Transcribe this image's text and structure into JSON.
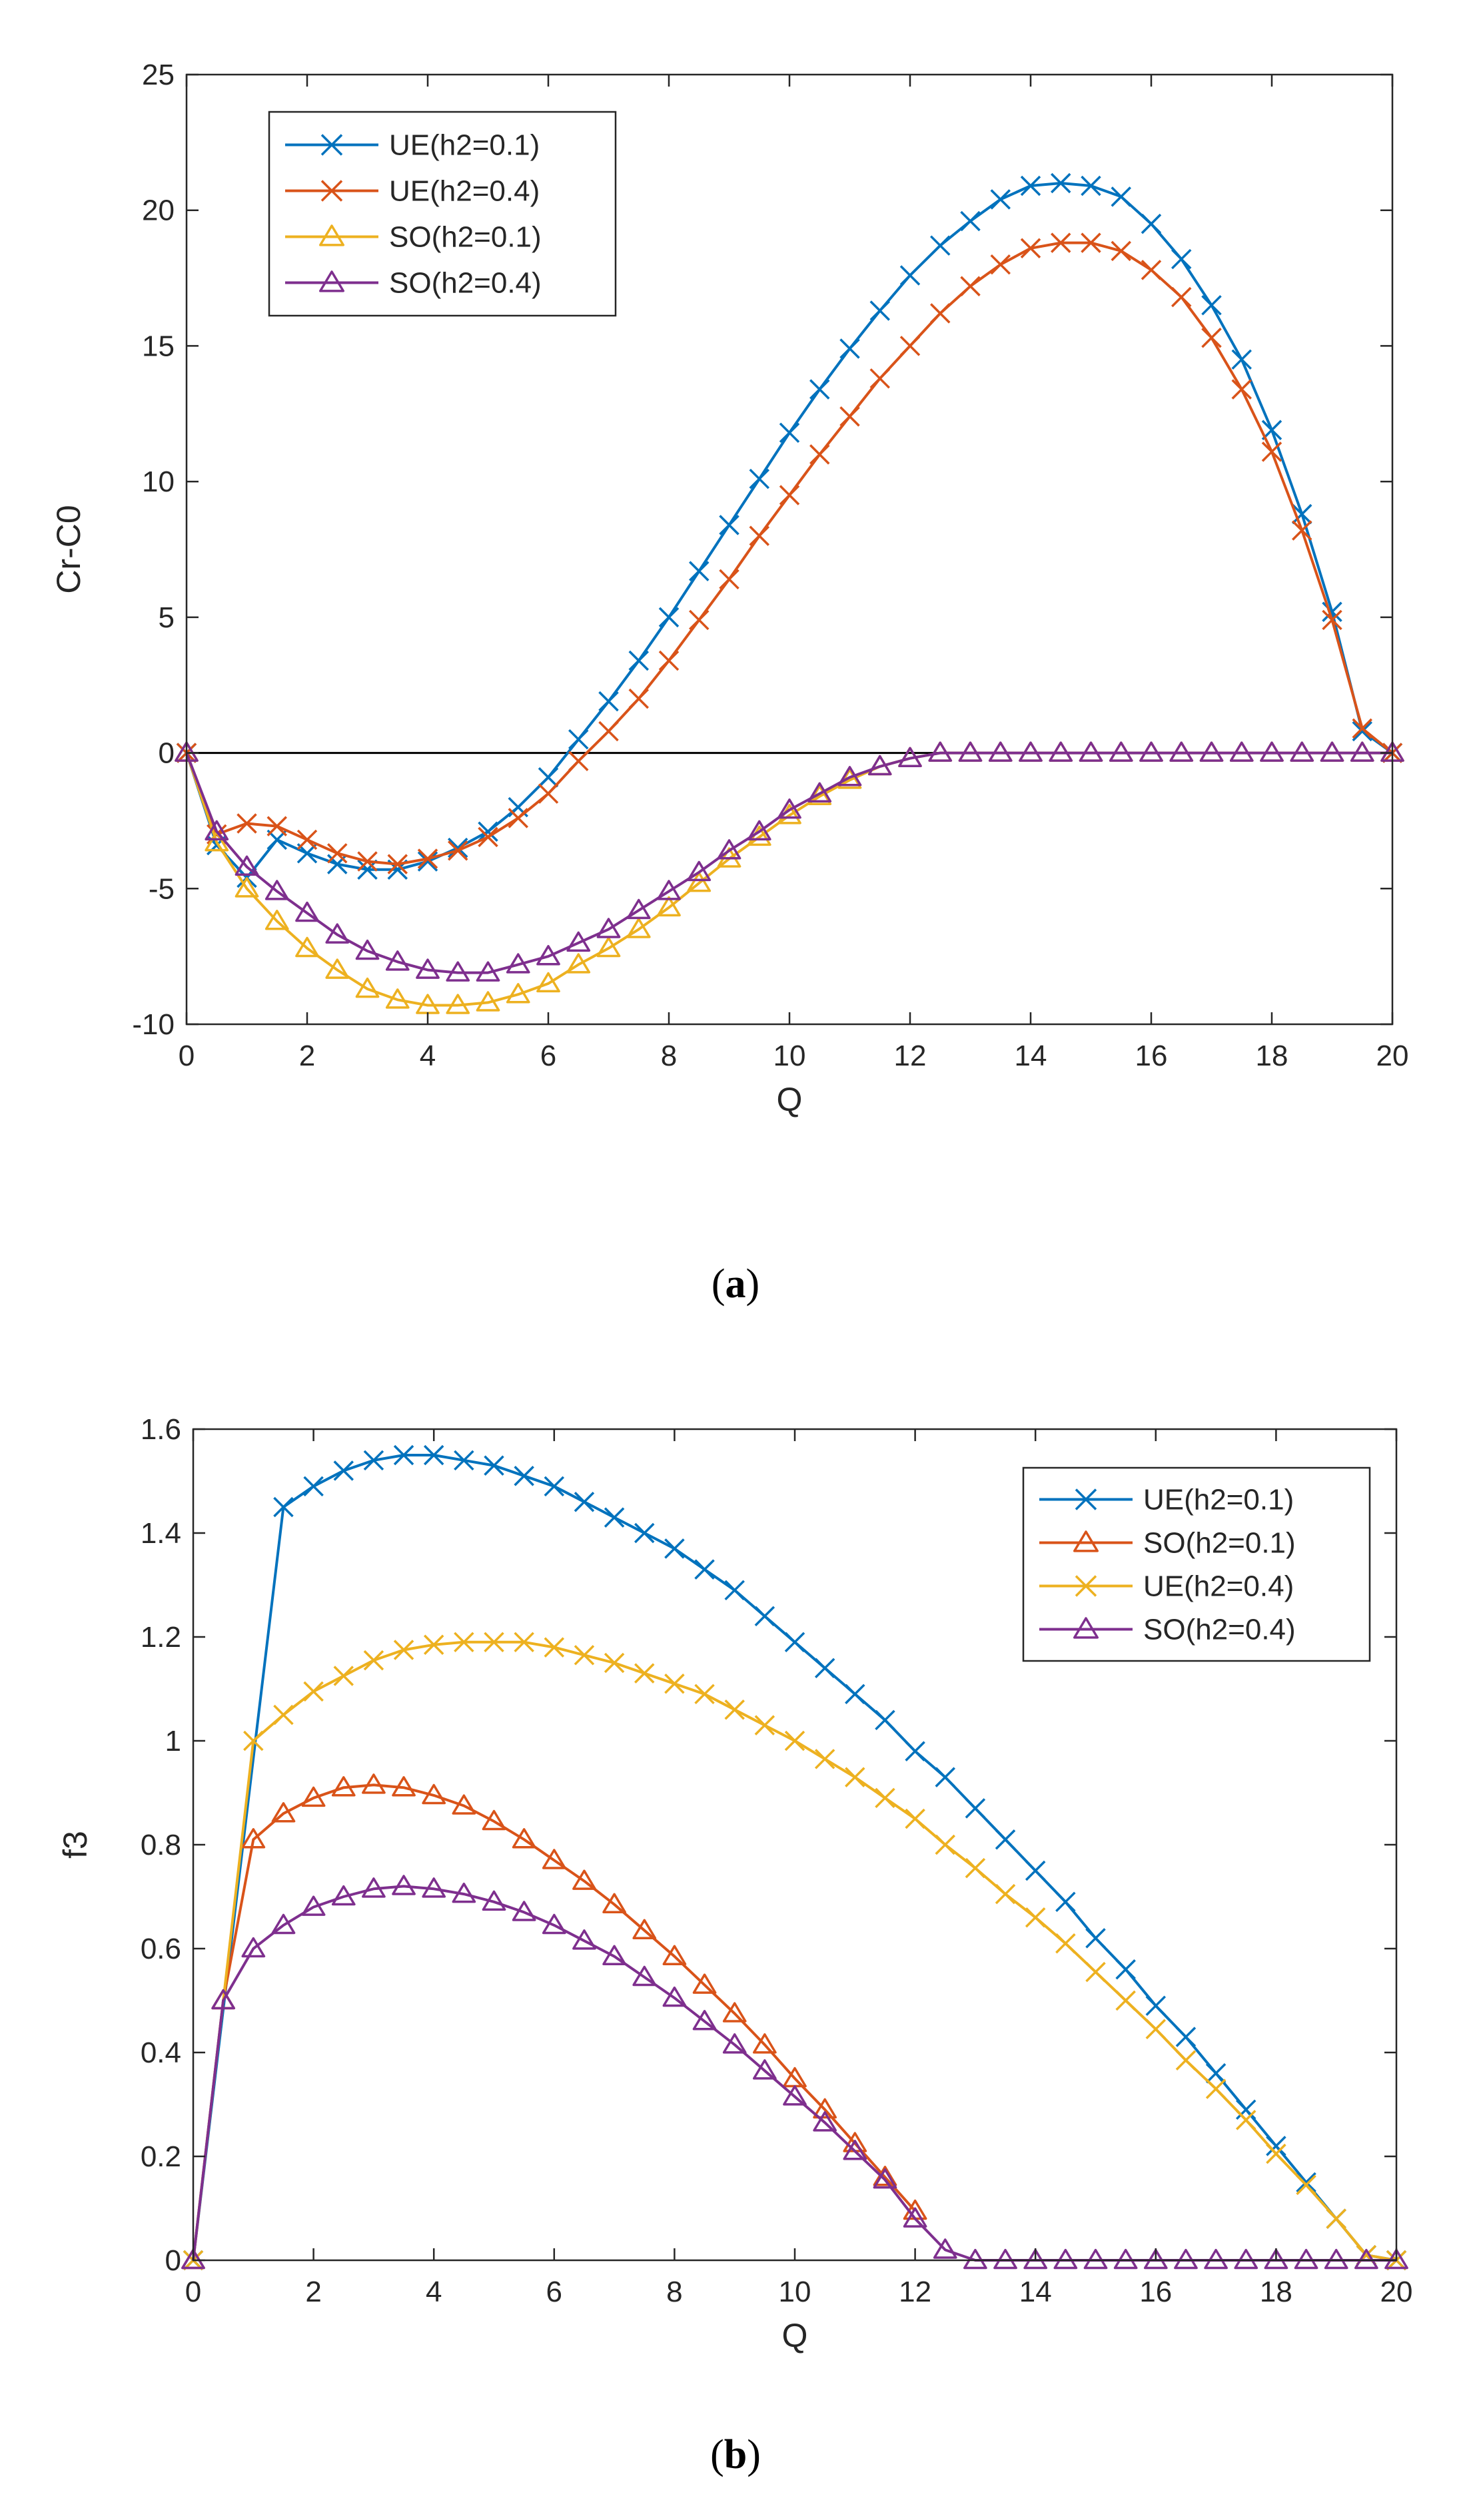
{
  "captions": {
    "a": "(a)",
    "b": "(b)"
  },
  "caption_parts": {
    "a": {
      "open": "(",
      "letter": "a",
      "close": ")"
    },
    "b": {
      "open": "(",
      "letter": "b",
      "close": ")"
    }
  },
  "chart_data": [
    {
      "id": "a",
      "type": "line",
      "title": "",
      "xlabel": "Q",
      "ylabel": "Cr-C0",
      "xlim": [
        0,
        20
      ],
      "ylim": [
        -10,
        25
      ],
      "xticks": [
        0,
        2,
        4,
        6,
        8,
        10,
        12,
        14,
        16,
        18,
        20
      ],
      "yticks": [
        -10,
        -5,
        0,
        5,
        10,
        15,
        20,
        25
      ],
      "grid": false,
      "legend_position": "top-left",
      "reference_line": {
        "y": 0,
        "color": "#000000"
      },
      "series": [
        {
          "name": "UE(h2=0.1)",
          "color": "#0072BD",
          "marker": "x",
          "x": [
            0,
            0.5,
            1,
            1.5,
            2,
            2.5,
            3,
            3.5,
            4,
            4.5,
            5,
            5.5,
            6,
            6.5,
            7,
            7.5,
            8,
            8.5,
            9,
            9.5,
            10,
            10.5,
            11,
            11.5,
            12,
            12.5,
            13,
            13.5,
            14,
            14.5,
            15,
            15.5,
            16,
            16.5,
            17,
            17.5,
            18,
            18.5,
            19,
            19.5,
            20
          ],
          "y": [
            0,
            -3.4,
            -4.6,
            -3.2,
            -3.7,
            -4.1,
            -4.3,
            -4.3,
            -4.0,
            -3.5,
            -2.9,
            -2.0,
            -0.9,
            0.5,
            1.9,
            3.4,
            5.0,
            6.7,
            8.4,
            10.1,
            11.8,
            13.4,
            14.9,
            16.3,
            17.6,
            18.7,
            19.6,
            20.4,
            20.9,
            21.0,
            20.9,
            20.5,
            19.5,
            18.2,
            16.5,
            14.5,
            11.9,
            8.8,
            5.2,
            0.8,
            0
          ],
          "marker_every": 1
        },
        {
          "name": "UE(h2=0.4)",
          "color": "#D95319",
          "marker": "x",
          "x": [
            0,
            0.5,
            1,
            1.5,
            2,
            2.5,
            3,
            3.5,
            4,
            4.5,
            5,
            5.5,
            6,
            6.5,
            7,
            7.5,
            8,
            8.5,
            9,
            9.5,
            10,
            10.5,
            11,
            11.5,
            12,
            12.5,
            13,
            13.5,
            14,
            14.5,
            15,
            15.5,
            16,
            16.5,
            17,
            17.5,
            18,
            18.5,
            19,
            19.5,
            20
          ],
          "y": [
            0,
            -3.0,
            -2.6,
            -2.7,
            -3.2,
            -3.7,
            -4.0,
            -4.1,
            -3.9,
            -3.6,
            -3.1,
            -2.4,
            -1.5,
            -0.3,
            0.8,
            2.0,
            3.4,
            4.9,
            6.4,
            8.0,
            9.5,
            11.0,
            12.4,
            13.8,
            15.0,
            16.2,
            17.2,
            18.0,
            18.6,
            18.8,
            18.8,
            18.5,
            17.8,
            16.8,
            15.3,
            13.4,
            11.1,
            8.2,
            4.9,
            0.9,
            0
          ],
          "marker_every": 1
        },
        {
          "name": "SO(h2=0.1)",
          "color": "#EDB120",
          "marker": "triangle",
          "x": [
            0,
            0.5,
            1,
            1.5,
            2,
            2.5,
            3,
            3.5,
            4,
            4.5,
            5,
            5.5,
            6,
            6.5,
            7,
            7.5,
            8,
            8.5,
            9,
            9.5,
            10,
            10.5,
            11,
            11.5,
            12,
            12.5,
            13,
            13.5,
            14,
            14.5,
            15,
            15.5,
            16,
            16.5,
            17,
            17.5,
            18,
            18.5,
            19,
            19.5,
            20
          ],
          "y": [
            0,
            -3.3,
            -5.0,
            -6.2,
            -7.2,
            -8.0,
            -8.7,
            -9.1,
            -9.3,
            -9.3,
            -9.2,
            -8.9,
            -8.5,
            -7.8,
            -7.2,
            -6.5,
            -5.7,
            -4.8,
            -3.9,
            -3.1,
            -2.3,
            -1.6,
            -1.0,
            -0.5,
            -0.2,
            0,
            0,
            0,
            0,
            0,
            0,
            0,
            0,
            0,
            0,
            0,
            0,
            0,
            0,
            0,
            0
          ],
          "marker_every": 1
        },
        {
          "name": "SO(h2=0.4)",
          "color": "#7E2F8E",
          "marker": "triangle",
          "x": [
            0,
            0.5,
            1,
            1.5,
            2,
            2.5,
            3,
            3.5,
            4,
            4.5,
            5,
            5.5,
            6,
            6.5,
            7,
            7.5,
            8,
            8.5,
            9,
            9.5,
            10,
            10.5,
            11,
            11.5,
            12,
            12.5,
            13,
            13.5,
            14,
            14.5,
            15,
            15.5,
            16,
            16.5,
            17,
            17.5,
            18,
            18.5,
            19,
            19.5,
            20
          ],
          "y": [
            0,
            -2.9,
            -4.2,
            -5.1,
            -5.9,
            -6.7,
            -7.3,
            -7.7,
            -8.0,
            -8.1,
            -8.1,
            -7.8,
            -7.5,
            -7.0,
            -6.5,
            -5.8,
            -5.1,
            -4.4,
            -3.6,
            -2.9,
            -2.1,
            -1.5,
            -0.9,
            -0.5,
            -0.2,
            0,
            0,
            0,
            0,
            0,
            0,
            0,
            0,
            0,
            0,
            0,
            0,
            0,
            0,
            0,
            0
          ],
          "marker_every": 1
        }
      ]
    },
    {
      "id": "b",
      "type": "line",
      "title": "",
      "xlabel": "Q",
      "ylabel": "f3",
      "xlim": [
        0,
        20
      ],
      "ylim": [
        0,
        1.6
      ],
      "xticks": [
        0,
        2,
        4,
        6,
        8,
        10,
        12,
        14,
        16,
        18,
        20
      ],
      "yticks": [
        0,
        0.2,
        0.4,
        0.6,
        0.8,
        1,
        1.2,
        1.4,
        1.6
      ],
      "grid": false,
      "legend_position": "top-right",
      "series": [
        {
          "name": "UE(h2=0.1)",
          "color": "#0072BD",
          "marker": "x",
          "x": [
            0,
            1.5,
            2,
            2.5,
            3,
            3.5,
            4,
            4.5,
            5,
            5.5,
            6,
            6.5,
            7,
            7.5,
            8,
            8.5,
            9,
            9.5,
            10,
            10.5,
            11,
            11.5,
            12,
            12.5,
            13,
            13.5,
            14,
            14.5,
            15,
            15.5,
            16,
            16.5,
            17,
            17.5,
            18,
            18.5,
            19,
            19.5,
            20
          ],
          "y": [
            0,
            1.45,
            1.49,
            1.52,
            1.54,
            1.55,
            1.55,
            1.54,
            1.53,
            1.51,
            1.49,
            1.46,
            1.43,
            1.4,
            1.37,
            1.33,
            1.29,
            1.24,
            1.19,
            1.14,
            1.09,
            1.04,
            0.98,
            0.93,
            0.87,
            0.81,
            0.75,
            0.69,
            0.62,
            0.56,
            0.49,
            0.43,
            0.36,
            0.29,
            0.22,
            0.15,
            0.08,
            0.01,
            0
          ],
          "marker_every": 1
        },
        {
          "name": "SO(h2=0.1)",
          "color": "#D95319",
          "marker": "triangle",
          "x": [
            0,
            0.5,
            1,
            1.5,
            2,
            2.5,
            3,
            3.5,
            4,
            4.5,
            5,
            5.5,
            6,
            6.5,
            7,
            7.5,
            8,
            8.5,
            9,
            9.5,
            10,
            10.5,
            11,
            11.5,
            12
          ],
          "y": [
            0,
            0.5,
            0.81,
            0.86,
            0.89,
            0.91,
            0.915,
            0.91,
            0.895,
            0.875,
            0.845,
            0.81,
            0.77,
            0.73,
            0.685,
            0.635,
            0.585,
            0.53,
            0.475,
            0.415,
            0.35,
            0.29,
            0.225,
            0.16,
            0.095
          ],
          "marker_every": 1
        },
        {
          "name": "UE(h2=0.4)",
          "color": "#EDB120",
          "marker": "x",
          "x": [
            0,
            1,
            1.5,
            2,
            2.5,
            3,
            3.5,
            4,
            4.5,
            5,
            5.5,
            6,
            6.5,
            7,
            7.5,
            8,
            8.5,
            9,
            9.5,
            10,
            10.5,
            11,
            11.5,
            12,
            12.5,
            13,
            13.5,
            14,
            14.5,
            15,
            15.5,
            16,
            16.5,
            17,
            17.5,
            18,
            18.5,
            19,
            19.5,
            20
          ],
          "y": [
            0,
            1.0,
            1.05,
            1.095,
            1.125,
            1.155,
            1.175,
            1.185,
            1.19,
            1.19,
            1.19,
            1.18,
            1.165,
            1.15,
            1.13,
            1.11,
            1.09,
            1.06,
            1.03,
            1.0,
            0.965,
            0.93,
            0.89,
            0.85,
            0.8,
            0.755,
            0.705,
            0.66,
            0.61,
            0.555,
            0.5,
            0.445,
            0.385,
            0.33,
            0.27,
            0.205,
            0.145,
            0.08,
            0.01,
            0
          ],
          "marker_every": 1
        },
        {
          "name": "SO(h2=0.4)",
          "color": "#7E2F8E",
          "marker": "triangle",
          "x": [
            0,
            0.5,
            1,
            1.5,
            2,
            2.5,
            3,
            3.5,
            4,
            4.5,
            5,
            5.5,
            6,
            6.5,
            7,
            7.5,
            8,
            8.5,
            9,
            9.5,
            10,
            10.5,
            11,
            11.5,
            12,
            12.5,
            13,
            13.5,
            14,
            14.5,
            15,
            15.5,
            16,
            16.5,
            17,
            17.5,
            18,
            18.5,
            19,
            19.5,
            20
          ],
          "y": [
            0,
            0.5,
            0.6,
            0.645,
            0.68,
            0.7,
            0.715,
            0.72,
            0.715,
            0.705,
            0.69,
            0.67,
            0.645,
            0.615,
            0.585,
            0.545,
            0.505,
            0.46,
            0.415,
            0.365,
            0.315,
            0.265,
            0.21,
            0.155,
            0.08,
            0.02,
            0,
            0,
            0,
            0,
            0,
            0,
            0,
            0,
            0,
            0,
            0,
            0,
            0,
            0,
            0
          ],
          "marker_every": 1
        }
      ]
    }
  ]
}
